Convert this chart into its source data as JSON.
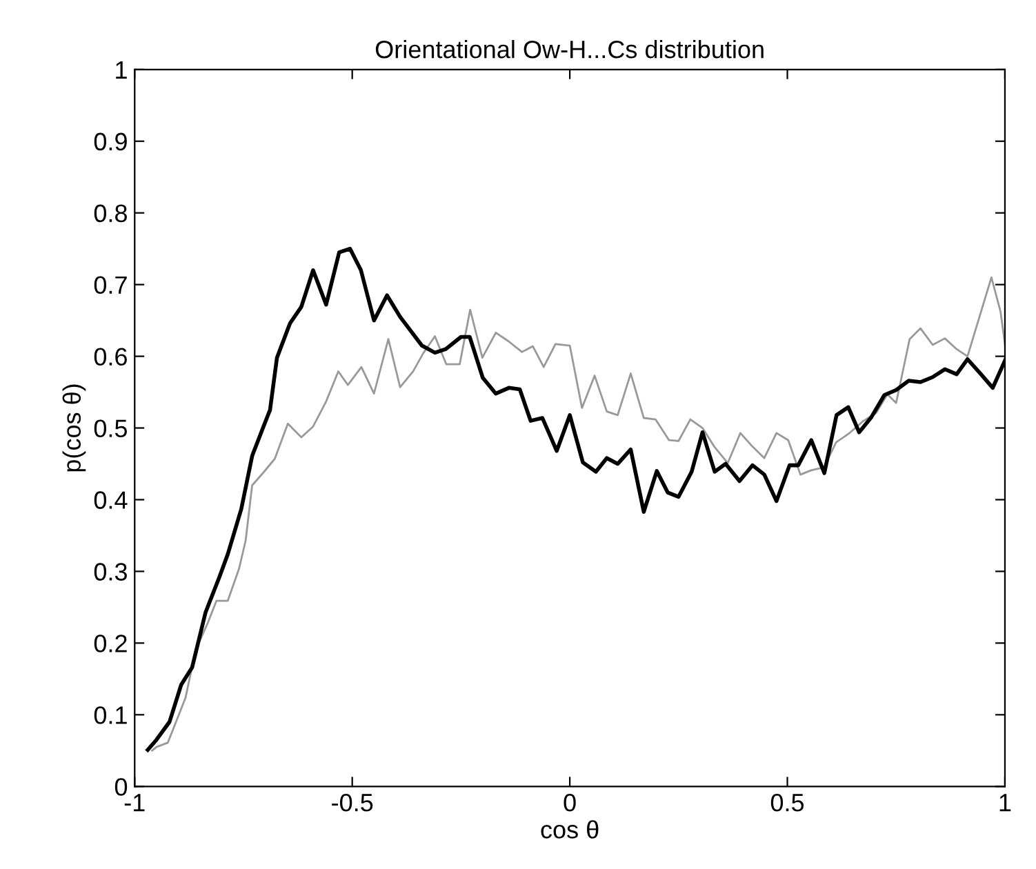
{
  "chart_data": {
    "type": "line",
    "title": "Orientational Ow-H...Cs distribution",
    "xlabel": "cos θ",
    "ylabel": "p(cos θ)",
    "xlim": [
      -1,
      1
    ],
    "xticks": [
      -1,
      -0.5,
      0,
      0.5,
      1
    ],
    "ylim": [
      0,
      1
    ],
    "yticks": [
      0,
      0.1,
      0.2,
      0.3,
      0.4,
      0.5,
      0.6,
      0.7,
      0.8,
      0.9,
      1
    ],
    "grid": false,
    "legend": false,
    "marker": "none",
    "series": [
      {
        "color": "#999999",
        "line_style": "solid",
        "x": [
          -0.96,
          -0.95,
          -0.924,
          -0.905,
          -0.883,
          -0.86,
          -0.832,
          -0.812,
          -0.786,
          -0.76,
          -0.745,
          -0.73,
          -0.704,
          -0.678,
          -0.648,
          -0.617,
          -0.59,
          -0.56,
          -0.532,
          -0.51,
          -0.479,
          -0.45,
          -0.417,
          -0.39,
          -0.36,
          -0.337,
          -0.31,
          -0.284,
          -0.253,
          -0.229,
          -0.201,
          -0.17,
          -0.141,
          -0.11,
          -0.085,
          -0.06,
          -0.033,
          0.0,
          0.028,
          0.057,
          0.085,
          0.11,
          0.14,
          0.17,
          0.197,
          0.228,
          0.25,
          0.277,
          0.305,
          0.332,
          0.363,
          0.392,
          0.42,
          0.447,
          0.475,
          0.502,
          0.53,
          0.555,
          0.584,
          0.612,
          0.643,
          0.673,
          0.704,
          0.73,
          0.75,
          0.781,
          0.806,
          0.834,
          0.862,
          0.889,
          0.914,
          0.942,
          0.969,
          0.99,
          1.0
        ],
        "values": [
          0.05,
          0.055,
          0.061,
          0.09,
          0.124,
          0.19,
          0.228,
          0.259,
          0.259,
          0.304,
          0.343,
          0.42,
          0.438,
          0.457,
          0.506,
          0.487,
          0.502,
          0.537,
          0.579,
          0.56,
          0.585,
          0.548,
          0.624,
          0.557,
          0.579,
          0.604,
          0.628,
          0.589,
          0.589,
          0.665,
          0.598,
          0.633,
          0.621,
          0.606,
          0.614,
          0.585,
          0.617,
          0.615,
          0.528,
          0.573,
          0.523,
          0.518,
          0.576,
          0.514,
          0.512,
          0.483,
          0.482,
          0.512,
          0.5,
          0.474,
          0.451,
          0.493,
          0.474,
          0.458,
          0.493,
          0.483,
          0.435,
          0.441,
          0.445,
          0.48,
          0.493,
          0.509,
          0.521,
          0.547,
          0.535,
          0.624,
          0.639,
          0.616,
          0.625,
          0.61,
          0.6,
          0.656,
          0.71,
          0.662,
          0.617
        ]
      },
      {
        "color": "#000000",
        "line_style": "solid",
        "x": [
          -0.97,
          -0.95,
          -0.92,
          -0.893,
          -0.868,
          -0.837,
          -0.806,
          -0.786,
          -0.755,
          -0.73,
          -0.704,
          -0.689,
          -0.673,
          -0.643,
          -0.617,
          -0.59,
          -0.56,
          -0.53,
          -0.505,
          -0.48,
          -0.45,
          -0.42,
          -0.39,
          -0.34,
          -0.31,
          -0.285,
          -0.25,
          -0.23,
          -0.2,
          -0.17,
          -0.14,
          -0.115,
          -0.09,
          -0.063,
          -0.03,
          0.0,
          0.03,
          0.06,
          0.085,
          0.11,
          0.14,
          0.17,
          0.2,
          0.225,
          0.25,
          0.28,
          0.305,
          0.333,
          0.358,
          0.39,
          0.42,
          0.447,
          0.475,
          0.505,
          0.525,
          0.555,
          0.585,
          0.613,
          0.64,
          0.665,
          0.693,
          0.723,
          0.75,
          0.779,
          0.806,
          0.834,
          0.862,
          0.889,
          0.914,
          0.945,
          0.972,
          1.0
        ],
        "values": [
          0.051,
          0.065,
          0.09,
          0.142,
          0.166,
          0.243,
          0.291,
          0.324,
          0.387,
          0.461,
          0.502,
          0.525,
          0.598,
          0.646,
          0.669,
          0.72,
          0.672,
          0.745,
          0.75,
          0.72,
          0.65,
          0.685,
          0.655,
          0.615,
          0.605,
          0.61,
          0.627,
          0.627,
          0.57,
          0.548,
          0.556,
          0.554,
          0.51,
          0.514,
          0.468,
          0.518,
          0.452,
          0.439,
          0.458,
          0.45,
          0.47,
          0.383,
          0.44,
          0.41,
          0.404,
          0.439,
          0.494,
          0.439,
          0.45,
          0.426,
          0.448,
          0.435,
          0.398,
          0.448,
          0.448,
          0.483,
          0.437,
          0.518,
          0.529,
          0.494,
          0.515,
          0.546,
          0.553,
          0.566,
          0.564,
          0.571,
          0.582,
          0.575,
          0.596,
          0.575,
          0.556,
          0.594
        ]
      }
    ]
  }
}
